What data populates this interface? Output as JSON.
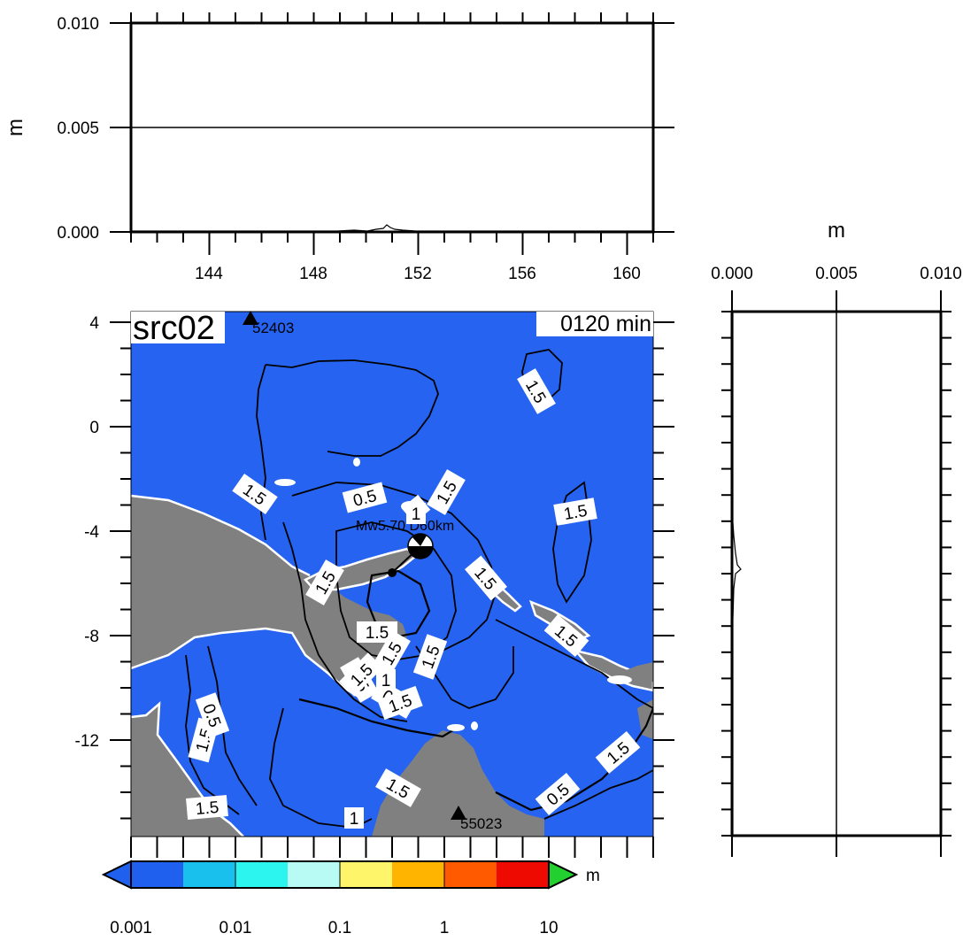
{
  "top_panel": {
    "ylabel": "m",
    "y_ticks": [
      "0.010",
      "0.005",
      "0.000"
    ],
    "x_ticks": [
      "144",
      "148",
      "152",
      "156",
      "160"
    ]
  },
  "side_panel": {
    "xlabel": "m",
    "x_ticks": [
      "0.000",
      "0.005",
      "0.010"
    ]
  },
  "map": {
    "title": "src02",
    "time_label": "0120 min",
    "lat_ticks": [
      "4",
      "0",
      "-4",
      "-8",
      "-12"
    ],
    "ocean_color": "#2563f0",
    "land_color": "#808080",
    "stations": [
      {
        "id": "52403"
      },
      {
        "id": "55023"
      }
    ],
    "event_label": "Mw5.70 D60km",
    "contour_labels": [
      "1.5",
      "0.5",
      "1.5",
      "1.5",
      "1.5",
      "1.5",
      "1.5",
      "1.5",
      "1.5",
      "1.5",
      "1.5",
      "1.5",
      "1",
      "0.5",
      "1.5",
      "1.5",
      "1.5",
      "0.5",
      "1.5",
      "1.5",
      "0.5",
      "1",
      "1",
      "1",
      "1.5"
    ]
  },
  "colorbar": {
    "unit": "m",
    "ticks": [
      "0.001",
      "0.01",
      "0.1",
      "1",
      "10"
    ],
    "colors": [
      "#2060ee",
      "#19c0ee",
      "#2cf5f0",
      "#b8fbf5",
      "#fff56a",
      "#ffb400",
      "#ff5a00",
      "#ee0a00"
    ],
    "under_color": "#2060ee",
    "over_color": "#22d030"
  }
}
